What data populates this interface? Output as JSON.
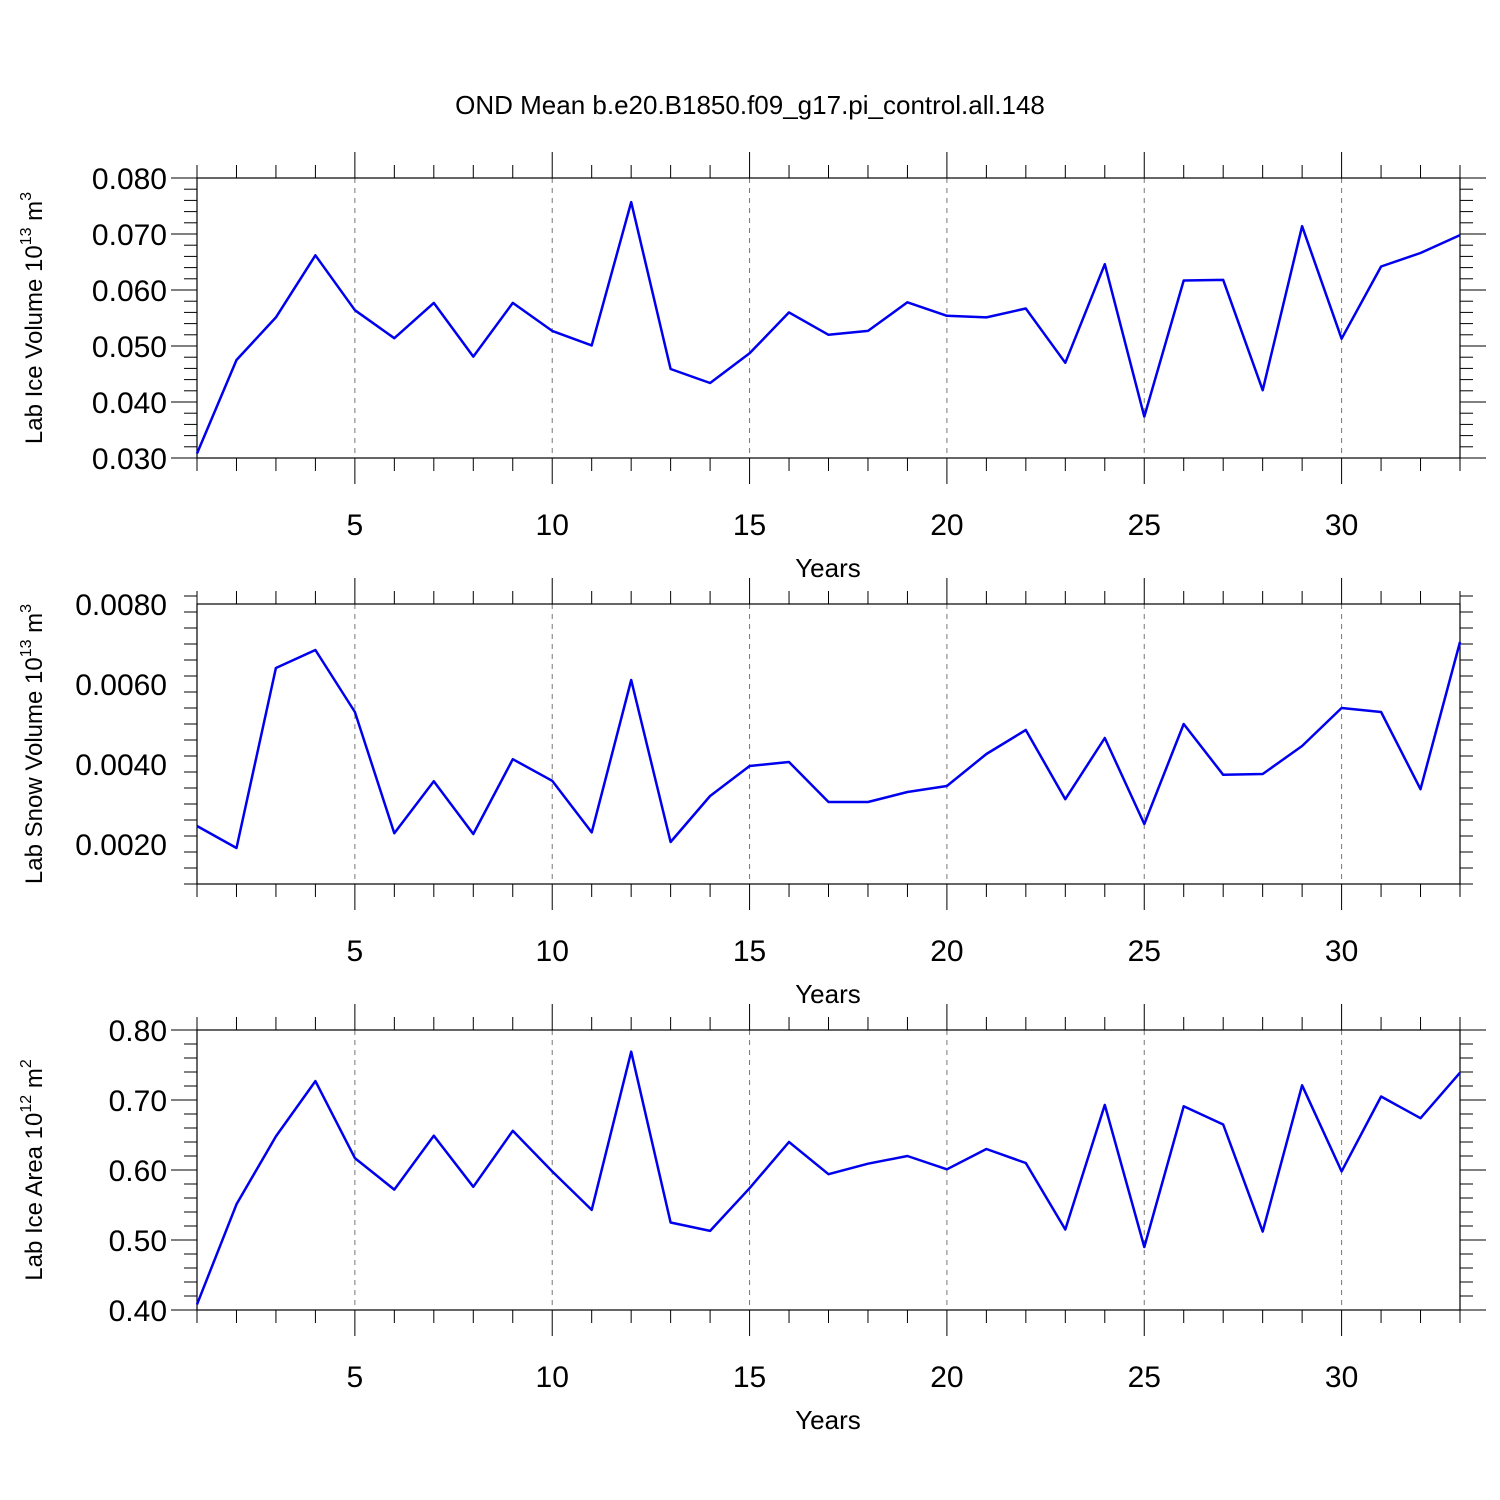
{
  "colors": {
    "line": "#0000ee",
    "axis": "#000000",
    "grid": "#777777",
    "background": "#ffffff"
  },
  "title": "OND Mean b.e20.B1850.f09_g17.pi_control.all.148",
  "chart_data": [
    {
      "type": "line",
      "ylabel_main": "Lab Ice Volume 10",
      "ylabel_exp": "13",
      "ylabel_unit": " m",
      "ylabel_unit_exp": "3",
      "xlabel": "Years",
      "xlim": [
        1,
        33
      ],
      "ylim": [
        0.03,
        0.08
      ],
      "xticks": [
        5,
        10,
        15,
        20,
        25,
        30
      ],
      "xtick_labels": [
        "5",
        "10",
        "15",
        "20",
        "25",
        "30"
      ],
      "yticks": [
        0.03,
        0.04,
        0.05,
        0.06,
        0.07,
        0.08
      ],
      "ytick_labels": [
        "0.030",
        "0.040",
        "0.050",
        "0.060",
        "0.070",
        "0.080"
      ],
      "grid": "dashed vertical at major x ticks",
      "x": [
        1,
        2,
        3,
        4,
        5,
        6,
        7,
        8,
        9,
        10,
        11,
        12,
        13,
        14,
        15,
        16,
        17,
        18,
        19,
        20,
        21,
        22,
        23,
        24,
        25,
        26,
        27,
        28,
        29,
        30,
        31,
        32,
        33
      ],
      "values": [
        0.0308,
        0.0475,
        0.0551,
        0.0662,
        0.0564,
        0.0514,
        0.0577,
        0.0481,
        0.0577,
        0.0527,
        0.0501,
        0.0757,
        0.0459,
        0.0434,
        0.0487,
        0.056,
        0.052,
        0.0527,
        0.0578,
        0.0554,
        0.0551,
        0.0567,
        0.047,
        0.0646,
        0.0374,
        0.0617,
        0.0618,
        0.0421,
        0.0714,
        0.0513,
        0.0642,
        0.0666,
        0.0698
      ]
    },
    {
      "type": "line",
      "ylabel_main": "Lab Snow Volume 10",
      "ylabel_exp": "13",
      "ylabel_unit": " m",
      "ylabel_unit_exp": "3",
      "xlabel": "Years",
      "xlim": [
        1,
        33
      ],
      "ylim": [
        0.001,
        0.008
      ],
      "xticks": [
        5,
        10,
        15,
        20,
        25,
        30
      ],
      "xtick_labels": [
        "5",
        "10",
        "15",
        "20",
        "25",
        "30"
      ],
      "yticks": [
        0.002,
        0.004,
        0.006,
        0.008
      ],
      "ytick_labels": [
        "0.0020",
        "0.0040",
        "0.0060",
        "0.0080"
      ],
      "grid": "dashed vertical at major x ticks",
      "x": [
        1,
        2,
        3,
        4,
        5,
        6,
        7,
        8,
        9,
        10,
        11,
        12,
        13,
        14,
        15,
        16,
        17,
        18,
        19,
        20,
        21,
        22,
        23,
        24,
        25,
        26,
        27,
        28,
        29,
        30,
        31,
        32,
        33
      ],
      "values": [
        0.00245,
        0.0019,
        0.0064,
        0.00685,
        0.0053,
        0.00227,
        0.00357,
        0.00225,
        0.00412,
        0.00358,
        0.00229,
        0.0061,
        0.00205,
        0.0032,
        0.00395,
        0.00405,
        0.00305,
        0.00305,
        0.0033,
        0.00345,
        0.00425,
        0.00485,
        0.00312,
        0.00465,
        0.0025,
        0.005,
        0.00373,
        0.00375,
        0.00445,
        0.0054,
        0.0053,
        0.00337,
        0.00705
      ]
    },
    {
      "type": "line",
      "ylabel_main": "Lab Ice Area 10",
      "ylabel_exp": "12",
      "ylabel_unit": " m",
      "ylabel_unit_exp": "2",
      "xlabel": "Years",
      "xlim": [
        1,
        33
      ],
      "ylim": [
        0.4,
        0.8
      ],
      "xticks": [
        5,
        10,
        15,
        20,
        25,
        30
      ],
      "xtick_labels": [
        "5",
        "10",
        "15",
        "20",
        "25",
        "30"
      ],
      "yticks": [
        0.4,
        0.5,
        0.6,
        0.7,
        0.8
      ],
      "ytick_labels": [
        "0.40",
        "0.50",
        "0.60",
        "0.70",
        "0.80"
      ],
      "grid": "dashed vertical at major x ticks",
      "x": [
        1,
        2,
        3,
        4,
        5,
        6,
        7,
        8,
        9,
        10,
        11,
        12,
        13,
        14,
        15,
        16,
        17,
        18,
        19,
        20,
        21,
        22,
        23,
        24,
        25,
        26,
        27,
        28,
        29,
        30,
        31,
        32,
        33
      ],
      "values": [
        0.408,
        0.551,
        0.648,
        0.727,
        0.617,
        0.572,
        0.649,
        0.576,
        0.656,
        0.598,
        0.543,
        0.769,
        0.525,
        0.513,
        0.574,
        0.64,
        0.594,
        0.609,
        0.62,
        0.601,
        0.63,
        0.61,
        0.515,
        0.693,
        0.49,
        0.691,
        0.665,
        0.512,
        0.721,
        0.598,
        0.705,
        0.674,
        0.739
      ]
    }
  ]
}
